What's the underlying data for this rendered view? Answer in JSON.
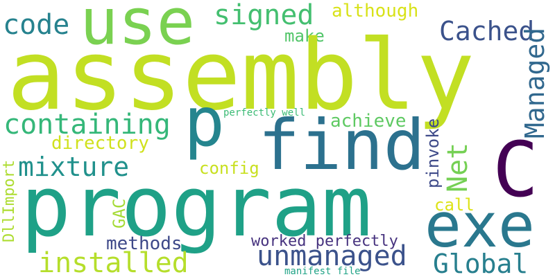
{
  "cloud": {
    "words": {
      "assembly": {
        "text": "assembly",
        "color": "#c2df23"
      },
      "program": {
        "text": "program",
        "color": "#1fa187"
      },
      "find": {
        "text": "find",
        "color": "#2c718e"
      },
      "use": {
        "text": "use",
        "color": "#7ad151"
      },
      "p": {
        "text": "p",
        "color": "#25858e"
      },
      "c": {
        "text": "C",
        "color": "#440154"
      },
      "exe": {
        "text": "exe",
        "color": "#2a788e"
      },
      "code": {
        "text": "code",
        "color": "#26828e"
      },
      "signed": {
        "text": "signed",
        "color": "#44bf70"
      },
      "although": {
        "text": "although",
        "color": "#d8e219"
      },
      "make": {
        "text": "make",
        "color": "#52c569"
      },
      "cached": {
        "text": "Cached",
        "color": "#3b528b"
      },
      "managed": {
        "text": "Managed",
        "color": "#31688e"
      },
      "containing": {
        "text": "containing",
        "color": "#35b779"
      },
      "perfectly_well": {
        "text": "perfectly well",
        "color": "#3bbb75"
      },
      "achieve": {
        "text": "achieve",
        "color": "#5ec962"
      },
      "directory": {
        "text": "directory",
        "color": "#d0e11c"
      },
      "mixture": {
        "text": "mixture",
        "color": "#21918c"
      },
      "config": {
        "text": "config",
        "color": "#c8e020"
      },
      "net": {
        "text": "Net",
        "color": "#75d054"
      },
      "pinvoke": {
        "text": "pinvoke",
        "color": "#3e4a89"
      },
      "dllimport": {
        "text": "DllImport",
        "color": "#addc30"
      },
      "gac": {
        "text": "GAC",
        "color": "#a5db36"
      },
      "call": {
        "text": "call",
        "color": "#dde318"
      },
      "methods": {
        "text": "methods",
        "color": "#3e4989"
      },
      "worked": {
        "text": "worked perfectly",
        "color": "#46327e"
      },
      "unmanaged": {
        "text": "unmanaged",
        "color": "#3b528b"
      },
      "installed": {
        "text": "installed",
        "color": "#b5de2b"
      },
      "global": {
        "text": "Global",
        "color": "#277f8e"
      },
      "manifest": {
        "text": "manifest file",
        "color": "#20a386"
      }
    }
  }
}
